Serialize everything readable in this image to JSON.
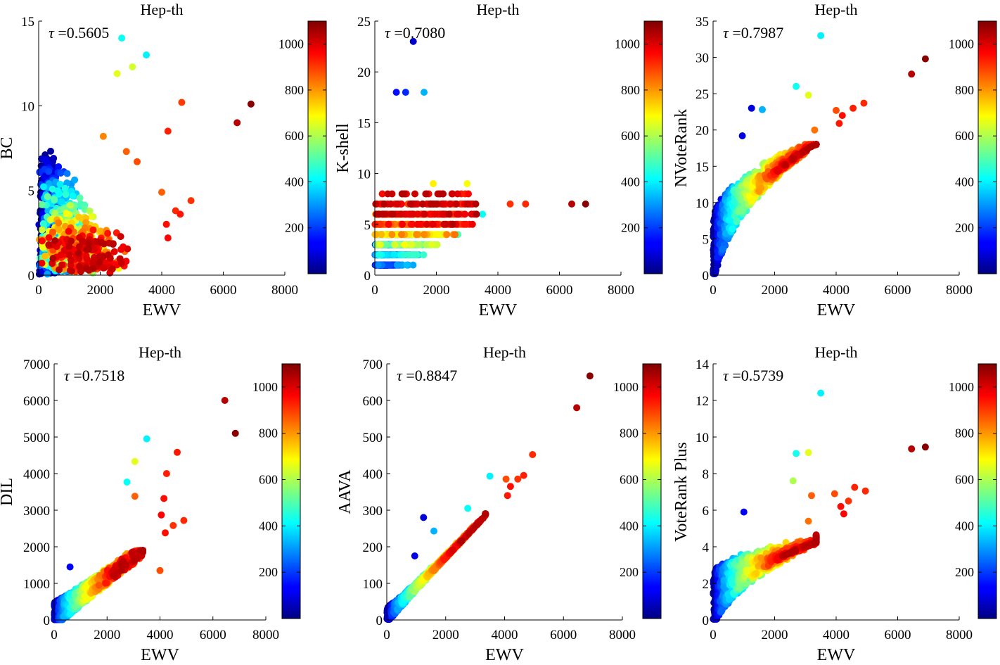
{
  "chart_data": [
    {
      "type": "scatter",
      "title": "Hep-th",
      "xlabel": "EWV",
      "ylabel": "BC",
      "annotation_symbol": "τ",
      "annotation_value": "=0.5605",
      "xlim": [
        0,
        8000
      ],
      "ylim": [
        0,
        15
      ],
      "xticks": [
        "0",
        "2000",
        "4000",
        "6000",
        "8000"
      ],
      "yticks": [
        "0",
        "5",
        "10",
        "15"
      ],
      "colorbar": {
        "range": [
          0,
          1100
        ],
        "ticks": [
          "200",
          "400",
          "600",
          "800",
          "1000"
        ],
        "colormap": "jet"
      },
      "highlight_points": [
        {
          "x": 2700,
          "y": 14.0,
          "c": 420
        },
        {
          "x": 3500,
          "y": 13.0,
          "c": 400
        },
        {
          "x": 2550,
          "y": 11.9,
          "c": 660
        },
        {
          "x": 3050,
          "y": 12.3,
          "c": 640
        },
        {
          "x": 4650,
          "y": 10.2,
          "c": 900
        },
        {
          "x": 6900,
          "y": 10.1,
          "c": 1090
        },
        {
          "x": 6450,
          "y": 9.0,
          "c": 1040
        },
        {
          "x": 4200,
          "y": 8.5,
          "c": 930
        },
        {
          "x": 2100,
          "y": 8.2,
          "c": 820
        },
        {
          "x": 2850,
          "y": 7.3,
          "c": 860
        },
        {
          "x": 3200,
          "y": 6.7,
          "c": 880
        },
        {
          "x": 4000,
          "y": 4.9,
          "c": 860
        },
        {
          "x": 4950,
          "y": 4.4,
          "c": 910
        },
        {
          "x": 4450,
          "y": 3.8,
          "c": 920
        },
        {
          "x": 4600,
          "y": 3.6,
          "c": 940
        },
        {
          "x": 4150,
          "y": 3.0,
          "c": 950
        },
        {
          "x": 4200,
          "y": 2.2,
          "c": 960
        },
        {
          "x": 2800,
          "y": 1.4,
          "c": 840
        },
        {
          "x": 2600,
          "y": 0.4,
          "c": 700
        }
      ]
    },
    {
      "type": "scatter",
      "title": "Hep-th",
      "xlabel": "EWV",
      "ylabel": "K-shell",
      "annotation_symbol": "τ",
      "annotation_value": "=0.7080",
      "xlim": [
        0,
        8000
      ],
      "ylim": [
        0,
        25
      ],
      "xticks": [
        "0",
        "2000",
        "4000",
        "6000",
        "8000"
      ],
      "yticks": [
        "0",
        "5",
        "10",
        "15",
        "20",
        "25"
      ],
      "colorbar": {
        "range": [
          0,
          1100
        ],
        "ticks": [
          "200",
          "400",
          "600",
          "800",
          "1000"
        ],
        "colormap": "jet"
      },
      "highlight_points": [
        {
          "x": 1250,
          "y": 23,
          "c": 80
        },
        {
          "x": 700,
          "y": 18,
          "c": 150
        },
        {
          "x": 1000,
          "y": 18,
          "c": 180
        },
        {
          "x": 1600,
          "y": 18,
          "c": 330
        },
        {
          "x": 6400,
          "y": 7,
          "c": 1040
        },
        {
          "x": 6850,
          "y": 7,
          "c": 1090
        },
        {
          "x": 4900,
          "y": 7,
          "c": 920
        },
        {
          "x": 4400,
          "y": 7,
          "c": 910
        },
        {
          "x": 2700,
          "y": 4,
          "c": 500
        },
        {
          "x": 3500,
          "y": 6,
          "c": 420
        },
        {
          "x": 3000,
          "y": 9,
          "c": 680
        },
        {
          "x": 1900,
          "y": 9,
          "c": 700
        }
      ]
    },
    {
      "type": "scatter",
      "title": "Hep-th",
      "xlabel": "EWV",
      "ylabel": "NVoteRank",
      "annotation_symbol": "τ",
      "annotation_value": "=0.7987",
      "xlim": [
        0,
        8000
      ],
      "ylim": [
        0,
        35
      ],
      "xticks": [
        "0",
        "2000",
        "4000",
        "6000",
        "8000"
      ],
      "yticks": [
        "0",
        "5",
        "10",
        "15",
        "20",
        "25",
        "30",
        "35"
      ],
      "colorbar": {
        "range": [
          0,
          1100
        ],
        "ticks": [
          "200",
          "400",
          "600",
          "800",
          "1000"
        ],
        "colormap": "jet"
      },
      "highlight_points": [
        {
          "x": 3500,
          "y": 33,
          "c": 400
        },
        {
          "x": 6900,
          "y": 29.8,
          "c": 1090
        },
        {
          "x": 6450,
          "y": 27.7,
          "c": 1040
        },
        {
          "x": 2700,
          "y": 26,
          "c": 430
        },
        {
          "x": 3100,
          "y": 24.8,
          "c": 660
        },
        {
          "x": 4900,
          "y": 23.7,
          "c": 920
        },
        {
          "x": 4550,
          "y": 23.0,
          "c": 930
        },
        {
          "x": 4000,
          "y": 22.7,
          "c": 880
        },
        {
          "x": 4200,
          "y": 22.0,
          "c": 950
        },
        {
          "x": 4100,
          "y": 20.9,
          "c": 940
        },
        {
          "x": 1250,
          "y": 23.0,
          "c": 100
        },
        {
          "x": 1600,
          "y": 22.8,
          "c": 330
        },
        {
          "x": 950,
          "y": 19.2,
          "c": 110
        },
        {
          "x": 3300,
          "y": 20.0,
          "c": 840
        }
      ]
    },
    {
      "type": "scatter",
      "title": "Hep-th",
      "xlabel": "EWV",
      "ylabel": "DIL",
      "annotation_symbol": "τ",
      "annotation_value": "=0.7518",
      "xlim": [
        0,
        8000
      ],
      "ylim": [
        0,
        7000
      ],
      "xticks": [
        "0",
        "2000",
        "4000",
        "6000",
        "8000"
      ],
      "yticks": [
        "0",
        "1000",
        "2000",
        "3000",
        "4000",
        "5000",
        "6000",
        "7000"
      ],
      "colorbar": {
        "range": [
          0,
          1100
        ],
        "ticks": [
          "200",
          "400",
          "600",
          "800",
          "1000"
        ],
        "colormap": "jet"
      },
      "highlight_points": [
        {
          "x": 6450,
          "y": 6000,
          "c": 1040
        },
        {
          "x": 6850,
          "y": 5100,
          "c": 1090
        },
        {
          "x": 3500,
          "y": 4950,
          "c": 400
        },
        {
          "x": 4650,
          "y": 4580,
          "c": 940
        },
        {
          "x": 3050,
          "y": 4330,
          "c": 660
        },
        {
          "x": 4250,
          "y": 4000,
          "c": 930
        },
        {
          "x": 2750,
          "y": 3770,
          "c": 420
        },
        {
          "x": 3050,
          "y": 3380,
          "c": 860
        },
        {
          "x": 4150,
          "y": 3320,
          "c": 950
        },
        {
          "x": 4050,
          "y": 2870,
          "c": 960
        },
        {
          "x": 4900,
          "y": 2720,
          "c": 920
        },
        {
          "x": 4500,
          "y": 2580,
          "c": 910
        },
        {
          "x": 4200,
          "y": 2380,
          "c": 950
        },
        {
          "x": 4000,
          "y": 1350,
          "c": 880
        },
        {
          "x": 600,
          "y": 1450,
          "c": 130
        }
      ]
    },
    {
      "type": "scatter",
      "title": "Hep-th",
      "xlabel": "EWV",
      "ylabel": "AAVA",
      "annotation_symbol": "τ",
      "annotation_value": "=0.8847",
      "xlim": [
        0,
        8000
      ],
      "ylim": [
        0,
        700
      ],
      "xticks": [
        "0",
        "2000",
        "4000",
        "6000",
        "8000"
      ],
      "yticks": [
        "0",
        "100",
        "200",
        "300",
        "400",
        "500",
        "600",
        "700"
      ],
      "colorbar": {
        "range": [
          0,
          1100
        ],
        "ticks": [
          "200",
          "400",
          "600",
          "800",
          "1000"
        ],
        "colormap": "jet"
      },
      "highlight_points": [
        {
          "x": 6900,
          "y": 667,
          "c": 1090
        },
        {
          "x": 6450,
          "y": 580,
          "c": 1040
        },
        {
          "x": 4950,
          "y": 452,
          "c": 920
        },
        {
          "x": 4650,
          "y": 395,
          "c": 930
        },
        {
          "x": 3500,
          "y": 393,
          "c": 400
        },
        {
          "x": 4050,
          "y": 385,
          "c": 880
        },
        {
          "x": 4450,
          "y": 385,
          "c": 910
        },
        {
          "x": 4200,
          "y": 365,
          "c": 950
        },
        {
          "x": 4100,
          "y": 340,
          "c": 940
        },
        {
          "x": 2750,
          "y": 305,
          "c": 420
        },
        {
          "x": 1250,
          "y": 280,
          "c": 100
        },
        {
          "x": 1600,
          "y": 243,
          "c": 330
        },
        {
          "x": 950,
          "y": 175,
          "c": 110
        }
      ]
    },
    {
      "type": "scatter",
      "title": "Hep-th",
      "xlabel": "EWV",
      "ylabel": "VoteRank Plus",
      "annotation_symbol": "τ",
      "annotation_value": "=0.5739",
      "xlim": [
        0,
        8000
      ],
      "ylim": [
        0,
        14
      ],
      "xticks": [
        "0",
        "2000",
        "4000",
        "6000",
        "8000"
      ],
      "yticks": [
        "0",
        "2",
        "4",
        "6",
        "8",
        "10",
        "12",
        "14"
      ],
      "colorbar": {
        "range": [
          0,
          1100
        ],
        "ticks": [
          "200",
          "400",
          "600",
          "800",
          "1000"
        ],
        "colormap": "jet"
      },
      "highlight_points": [
        {
          "x": 3500,
          "y": 12.4,
          "c": 400
        },
        {
          "x": 3100,
          "y": 9.15,
          "c": 660
        },
        {
          "x": 2700,
          "y": 9.1,
          "c": 430
        },
        {
          "x": 6900,
          "y": 9.45,
          "c": 1090
        },
        {
          "x": 6450,
          "y": 9.35,
          "c": 1040
        },
        {
          "x": 2600,
          "y": 7.6,
          "c": 600
        },
        {
          "x": 4600,
          "y": 7.25,
          "c": 930
        },
        {
          "x": 4950,
          "y": 7.05,
          "c": 920
        },
        {
          "x": 3950,
          "y": 6.9,
          "c": 880
        },
        {
          "x": 3200,
          "y": 6.8,
          "c": 860
        },
        {
          "x": 4400,
          "y": 6.5,
          "c": 910
        },
        {
          "x": 4150,
          "y": 6.2,
          "c": 950
        },
        {
          "x": 4250,
          "y": 5.8,
          "c": 960
        },
        {
          "x": 1000,
          "y": 5.9,
          "c": 130
        },
        {
          "x": 3100,
          "y": 5.4,
          "c": 840
        }
      ]
    }
  ]
}
